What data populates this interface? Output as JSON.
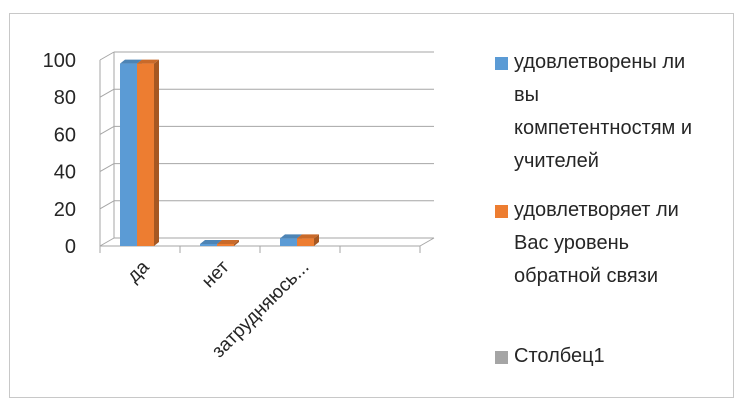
{
  "chart_data": {
    "type": "bar",
    "title": "",
    "xlabel": "",
    "ylabel": "",
    "categories": [
      "да",
      "нет",
      "затрудняюсь..."
    ],
    "y_ticks": [
      "0",
      "20",
      "40",
      "60",
      "80",
      "100"
    ],
    "ylim": [
      0,
      100
    ],
    "grid": true,
    "legend_position": "right",
    "three_d": true,
    "series": [
      {
        "name": "удовлетворены ли вы компетентностям и учителей",
        "values": [
          97,
          0,
          3
        ],
        "color": "#5b9bd5"
      },
      {
        "name": "удовлетворяет ли Вас уровень обратной связи",
        "values": [
          97,
          0,
          3
        ],
        "color": "#ed7d31"
      },
      {
        "name": "Столбец1",
        "values": [
          null,
          null,
          null
        ],
        "color": "#a5a5a5"
      }
    ]
  }
}
